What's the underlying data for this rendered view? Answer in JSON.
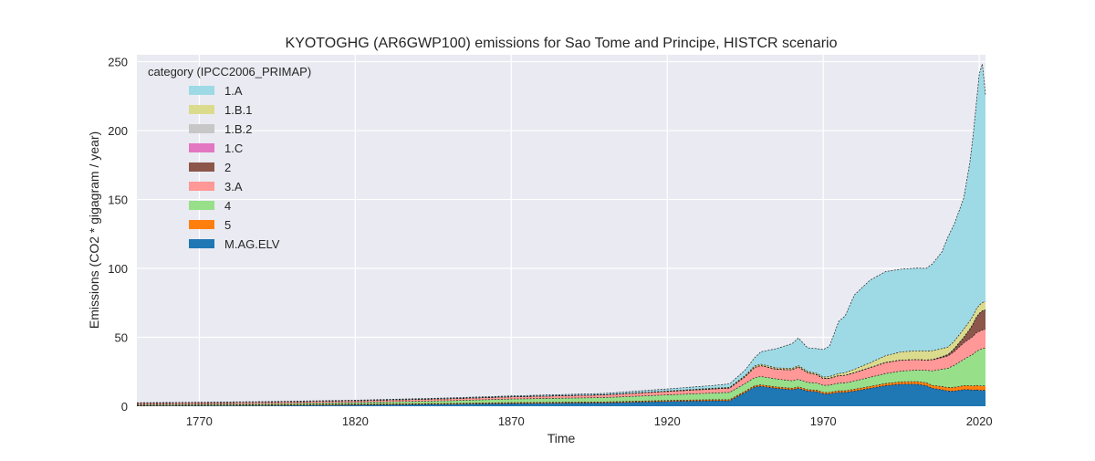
{
  "chart_data": {
    "type": "area",
    "stacked": true,
    "title": "KYOTOGHG (AR6GWP100) emissions for Sao Tome and Principe, HISTCR scenario",
    "xlabel": "Time",
    "ylabel": "Emissions (CO2 * gigagram / year)",
    "xlim": [
      1750,
      2022
    ],
    "ylim": [
      0,
      255
    ],
    "xticks": [
      1770,
      1820,
      1870,
      1920,
      1970,
      2020
    ],
    "yticks": [
      0,
      50,
      100,
      150,
      200,
      250
    ],
    "grid": true,
    "legend": {
      "title": "category (IPCC2006_PRIMAP)",
      "position": "top-left"
    },
    "x": [
      1750,
      1790,
      1820,
      1850,
      1870,
      1900,
      1920,
      1935,
      1940,
      1945,
      1948,
      1950,
      1955,
      1960,
      1962,
      1965,
      1968,
      1970,
      1972,
      1975,
      1977,
      1980,
      1985,
      1990,
      1995,
      2000,
      2003,
      2005,
      2008,
      2010,
      2012,
      2015,
      2017,
      2018,
      2019,
      2020,
      2021,
      2022
    ],
    "series": [
      {
        "name": "M.AG.ELV",
        "color": "#1f77b4",
        "values": [
          0.3,
          0.5,
          1.0,
          1.5,
          2.0,
          2.5,
          3.5,
          4.0,
          4.0,
          10,
          14,
          14.5,
          13,
          12,
          13,
          11,
          10.5,
          9,
          9,
          10,
          10,
          11,
          13,
          15,
          16,
          16,
          15,
          13,
          12,
          11,
          11,
          12,
          12,
          11.5,
          12,
          11.5,
          11.5,
          11.5
        ]
      },
      {
        "name": "5",
        "color": "#ff7f0e",
        "values": [
          0.4,
          0.4,
          0.5,
          0.5,
          0.6,
          0.6,
          0.7,
          0.8,
          0.8,
          0.9,
          0.9,
          1.0,
          1.0,
          1.0,
          1.0,
          1.0,
          1.1,
          1.1,
          1.1,
          1.2,
          1.2,
          1.3,
          1.4,
          1.5,
          1.7,
          1.9,
          2.0,
          2.1,
          2.3,
          2.5,
          2.7,
          2.9,
          3.0,
          3.1,
          3.2,
          3.3,
          3.3,
          3.3
        ]
      },
      {
        "name": "4",
        "color": "#98df8a",
        "values": [
          0.6,
          0.9,
          1.2,
          2.0,
          2.6,
          3.2,
          4.0,
          4.8,
          5.2,
          5.6,
          5.8,
          6.0,
          5.8,
          5.4,
          5.5,
          5.3,
          5.2,
          5.0,
          5.2,
          5.5,
          5.7,
          6.0,
          6.6,
          7.2,
          7.8,
          8.3,
          9.0,
          10.5,
          12.5,
          14.0,
          16.0,
          19.0,
          21.5,
          23.0,
          24.5,
          26.0,
          27.0,
          27.5
        ]
      },
      {
        "name": "3.A",
        "color": "#ff9896",
        "values": [
          1.0,
          1.2,
          1.3,
          1.4,
          1.6,
          2.0,
          2.5,
          3.0,
          3.2,
          5.0,
          7.5,
          8.0,
          7.0,
          8.0,
          9.0,
          7.0,
          6.0,
          5.0,
          5.0,
          5.5,
          5.5,
          6.0,
          7.0,
          8.0,
          8.0,
          7.5,
          7.5,
          8.0,
          8.5,
          9.0,
          10.0,
          12.0,
          12.5,
          13.0,
          13.5,
          13.5,
          13.5,
          13.5
        ]
      },
      {
        "name": "2",
        "color": "#8c564b",
        "values": [
          0,
          0,
          0,
          0,
          0,
          0,
          0,
          0,
          0,
          0,
          0,
          0,
          0,
          0,
          0,
          0,
          0,
          0,
          0,
          0,
          0,
          0,
          0,
          0,
          0,
          0,
          0,
          0.2,
          0.5,
          1.0,
          2.0,
          4.0,
          7.0,
          9.0,
          11.0,
          13.0,
          14.0,
          14.0
        ]
      },
      {
        "name": "1.C",
        "color": "#e377c2",
        "values": [
          0,
          0,
          0,
          0,
          0,
          0,
          0,
          0,
          0,
          0,
          0,
          0,
          0,
          0,
          0,
          0,
          0,
          0,
          0,
          0,
          0,
          0,
          0,
          0,
          0,
          0,
          0,
          0,
          0,
          0,
          0,
          0,
          0,
          0,
          0,
          0,
          0,
          0
        ]
      },
      {
        "name": "1.B.2",
        "color": "#c7c7c7",
        "values": [
          0,
          0,
          0,
          0,
          0,
          0,
          0,
          0,
          0,
          0,
          0,
          0,
          0,
          0,
          0,
          0,
          0,
          0,
          0,
          0,
          0,
          0,
          0,
          0,
          0,
          0,
          0,
          0,
          0,
          0,
          0,
          0,
          0,
          0,
          0,
          0,
          0,
          0
        ]
      },
      {
        "name": "1.B.1",
        "color": "#dbdb8d",
        "values": [
          0,
          0,
          0,
          0,
          0,
          0,
          0.3,
          0.5,
          0.5,
          0.8,
          1.0,
          1.0,
          1.0,
          1.0,
          1.0,
          1.0,
          1.0,
          1.0,
          1.2,
          1.5,
          2.0,
          2.5,
          3.5,
          5.0,
          6.0,
          6.5,
          6.5,
          6.5,
          6.0,
          5.5,
          5.5,
          6.0,
          6.0,
          6.0,
          6.0,
          6.0,
          6.0,
          6.0
        ]
      },
      {
        "name": "1.A",
        "color": "#9edae5",
        "values": [
          0.2,
          0.3,
          0.4,
          0.6,
          0.7,
          1.0,
          1.5,
          2.0,
          2.5,
          4.0,
          6.0,
          9.0,
          14.0,
          18.0,
          20.0,
          17.0,
          18.0,
          20.0,
          22.0,
          38.0,
          41.0,
          54.0,
          60.0,
          61.0,
          60.0,
          60.0,
          60.0,
          63.0,
          70.0,
          80.0,
          85.0,
          95.0,
          115.0,
          130.0,
          148.0,
          168.0,
          173.0,
          150.0
        ]
      }
    ]
  }
}
